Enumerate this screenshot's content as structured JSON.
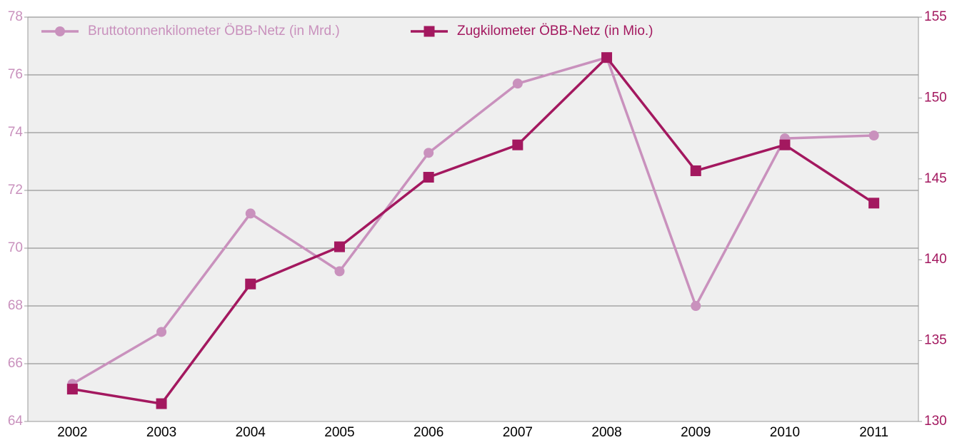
{
  "chart_data": {
    "type": "line",
    "categories": [
      "2002",
      "2003",
      "2004",
      "2005",
      "2006",
      "2007",
      "2008",
      "2009",
      "2010",
      "2011"
    ],
    "series": [
      {
        "name": "Bruttotonnenkilometer ÖBB-Netz (in Mrd.)",
        "color": "#c991bd",
        "marker": "circle",
        "axis": "y",
        "values": [
          65.3,
          67.1,
          71.2,
          69.2,
          73.3,
          75.7,
          76.6,
          68.0,
          73.8,
          73.9
        ]
      },
      {
        "name": "Zugkilometer ÖBB-Netz (in Mio.)",
        "color": "#a3185f",
        "marker": "square",
        "axis": "y2",
        "values": [
          132.0,
          131.1,
          138.5,
          140.8,
          145.1,
          147.1,
          152.5,
          145.5,
          147.1,
          143.5
        ]
      }
    ],
    "ylim": [
      64,
      78
    ],
    "yticks": [
      64,
      66,
      68,
      70,
      72,
      74,
      76,
      78
    ],
    "y2lim": [
      130,
      155
    ],
    "y2ticks": [
      130,
      135,
      140,
      145,
      150,
      155
    ],
    "grid": true,
    "legend": "top"
  }
}
